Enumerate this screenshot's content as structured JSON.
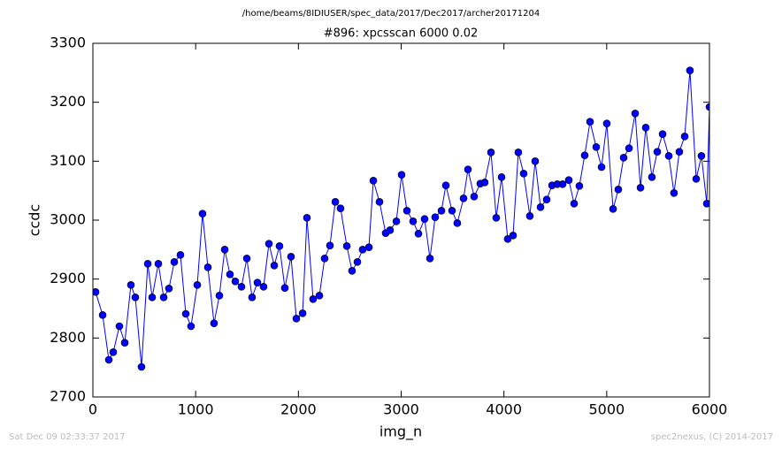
{
  "chart_data": {
    "type": "line",
    "suptitle": "/home/beams/8IDIUSER/spec_data/2017/Dec2017/archer20171204",
    "title": "#896: xpcsscan 6000 0.02",
    "xlabel": "img_n",
    "ylabel": "ccdc",
    "footer_left": "Sat Dec 09 02:33:37 2017",
    "footer_right": "spec2nexus, (C) 2014-2017",
    "xlim": [
      0,
      6000
    ],
    "xticks": [
      0,
      1000,
      2000,
      3000,
      4000,
      5000,
      6000
    ],
    "ylim": [
      2700,
      3300
    ],
    "yticks": [
      2700,
      2800,
      2900,
      3000,
      3100,
      3200,
      3300
    ],
    "marker": "circle",
    "series": [
      {
        "color": "#0000ff",
        "x": [
          26,
          95,
          155,
          198,
          258,
          310,
          370,
          413,
          473,
          534,
          577,
          637,
          689,
          740,
          792,
          852,
          904,
          955,
          1016,
          1067,
          1119,
          1179,
          1231,
          1283,
          1334,
          1386,
          1446,
          1498,
          1549,
          1601,
          1661,
          1713,
          1765,
          1816,
          1868,
          1928,
          1980,
          2041,
          2083,
          2143,
          2204,
          2255,
          2307,
          2359,
          2410,
          2471,
          2522,
          2574,
          2625,
          2686,
          2729,
          2789,
          2849,
          2892,
          2953,
          3004,
          3056,
          3116,
          3168,
          3228,
          3280,
          3331,
          3392,
          3435,
          3495,
          3546,
          3607,
          3650,
          3710,
          3770,
          3813,
          3874,
          3925,
          3977,
          4037,
          4089,
          4140,
          4192,
          4252,
          4304,
          4356,
          4416,
          4468,
          4519,
          4571,
          4631,
          4683,
          4734,
          4786,
          4838,
          4898,
          4950,
          5001,
          5062,
          5113,
          5165,
          5217,
          5277,
          5329,
          5380,
          5440,
          5492,
          5544,
          5604,
          5655,
          5707,
          5759,
          5810,
          5871,
          5922,
          5974,
          6000
        ],
        "values": [
          2878,
          2839,
          2763,
          2776,
          2820,
          2792,
          2890,
          2869,
          2751,
          2926,
          2869,
          2926,
          2869,
          2884,
          2929,
          2941,
          2841,
          2820,
          2890,
          3011,
          2920,
          2825,
          2872,
          2950,
          2908,
          2896,
          2887,
          2935,
          2869,
          2894,
          2887,
          2960,
          2923,
          2956,
          2885,
          2938,
          2833,
          2842,
          3004,
          2866,
          2872,
          2935,
          2957,
          3031,
          3020,
          2956,
          2914,
          2929,
          2950,
          2954,
          3067,
          3031,
          2978,
          2983,
          2998,
          3077,
          3016,
          2998,
          2977,
          3002,
          2935,
          3005,
          3016,
          3059,
          3016,
          2995,
          3037,
          3086,
          3040,
          3062,
          3064,
          3115,
          3004,
          3073,
          2968,
          2974,
          3115,
          3079,
          3007,
          3100,
          3022,
          3035,
          3059,
          3061,
          3061,
          3068,
          3028,
          3058,
          3110,
          3167,
          3124,
          3090,
          3164,
          3019,
          3052,
          3106,
          3122,
          3181,
          3055,
          3157,
          3073,
          3116,
          3146,
          3109,
          3046,
          3116,
          3142,
          3254,
          3070,
          3109,
          3028,
          3192
        ]
      }
    ]
  }
}
